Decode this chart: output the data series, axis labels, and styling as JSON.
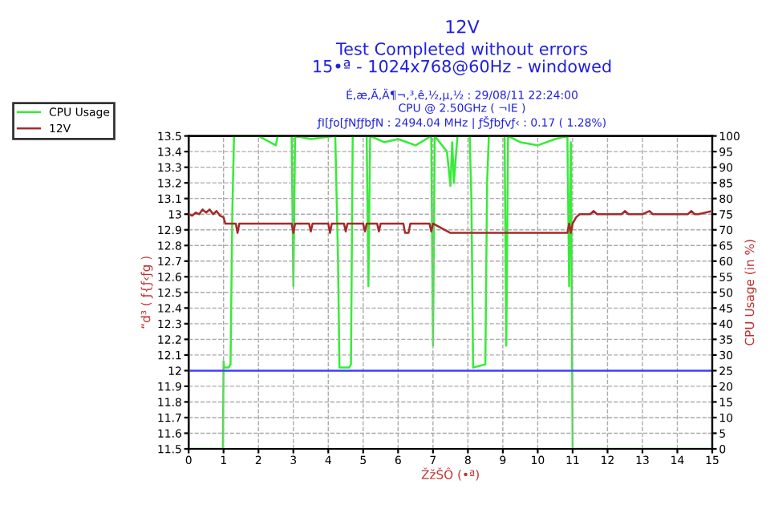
{
  "chart_data": {
    "type": "line",
    "title": "12V",
    "subtitle": "Test Completed without errors\n15•ª - 1024x768@60Hz - windowed",
    "annotations": [
      "É,æ,Ã,Ä¶¬,³,ê,½,µ,½ : 29/08/11 22:24:00",
      "CPU @ 2.50GHz ( ¬IE )",
      "ƒI[ƒo[ƒNƒƒbƒN : 2494.04 MHz | ƒŠƒbƒvƒ‹ : 0.17 ( 1.28%)"
    ],
    "xlabel": "ŽžŠÔ (•ª)",
    "ylabel": "“d³ ( ƒ{ƒ‹ƒg )",
    "y2label": "CPU Usage (in %)",
    "series": [
      {
        "name": "CPU Usage",
        "color": "#33ee33",
        "axis": "y2",
        "x": [
          0,
          0.98,
          1.0,
          1.02,
          1.05,
          1.15,
          1.2,
          1.25,
          1.3,
          2.0,
          2.5,
          2.55,
          2.95,
          3.0,
          3.05,
          3.5,
          4.2,
          4.28,
          4.32,
          4.6,
          4.65,
          4.7,
          5.1,
          5.15,
          5.2,
          5.6,
          6.0,
          6.5,
          6.95,
          7.0,
          7.05,
          7.4,
          7.5,
          7.55,
          7.6,
          7.7,
          8.05,
          8.1,
          8.15,
          8.5,
          8.55,
          8.6,
          9.05,
          9.1,
          9.15,
          9.5,
          10.0,
          10.5,
          10.85,
          10.9,
          10.95,
          11.0,
          11.02,
          15
        ],
        "values": [
          0,
          0,
          28,
          26,
          26,
          26,
          27,
          75,
          100,
          100,
          97,
          100,
          100,
          52,
          100,
          99,
          100,
          60,
          26,
          26,
          27,
          100,
          100,
          52,
          100,
          98,
          99,
          97,
          100,
          33,
          100,
          95,
          84,
          98,
          85,
          100,
          100,
          80,
          26,
          27,
          85,
          100,
          100,
          33,
          100,
          98,
          97,
          99,
          100,
          52,
          98,
          0,
          0,
          0
        ]
      },
      {
        "name": "12V",
        "color": "#a52a2a",
        "axis": "y",
        "x": [
          0,
          0.1,
          0.2,
          0.3,
          0.4,
          0.5,
          0.6,
          0.7,
          0.8,
          0.9,
          1.0,
          1.05,
          1.1,
          1.35,
          1.4,
          1.45,
          1.5,
          2.95,
          3.0,
          3.05,
          3.45,
          3.5,
          3.55,
          4.0,
          4.05,
          4.1,
          4.45,
          4.5,
          4.55,
          5.0,
          5.05,
          5.1,
          5.4,
          5.45,
          5.5,
          6.15,
          6.2,
          6.3,
          6.35,
          6.9,
          6.95,
          7.0,
          7.5,
          10.85,
          10.9,
          10.95,
          11.0,
          11.1,
          11.2,
          11.5,
          11.6,
          11.7,
          11.8,
          12.4,
          12.5,
          12.6,
          12.7,
          13.0,
          13.2,
          13.3,
          13.4,
          14.3,
          14.4,
          14.5,
          14.6,
          15
        ],
        "values": [
          13.0,
          12.99,
          13.01,
          13.0,
          13.03,
          13.01,
          13.03,
          13.0,
          13.02,
          12.99,
          12.98,
          12.94,
          12.94,
          12.94,
          12.88,
          12.94,
          12.94,
          12.94,
          12.88,
          12.94,
          12.94,
          12.89,
          12.94,
          12.94,
          12.88,
          12.94,
          12.94,
          12.89,
          12.94,
          12.94,
          12.89,
          12.94,
          12.94,
          12.89,
          12.94,
          12.94,
          12.88,
          12.88,
          12.94,
          12.94,
          12.89,
          12.94,
          12.88,
          12.88,
          12.94,
          12.88,
          12.94,
          12.98,
          13.0,
          13.0,
          13.02,
          13.0,
          13.0,
          13.0,
          13.02,
          13.0,
          13.0,
          13.0,
          13.02,
          13.0,
          13.0,
          13.0,
          13.02,
          13.0,
          13.0,
          13.02
        ]
      }
    ],
    "ref_lines": [
      {
        "axis": "y",
        "value": 12,
        "color": "#4040ff"
      }
    ],
    "xlim": [
      0,
      15
    ],
    "xticks": [
      0,
      1,
      2,
      3,
      4,
      5,
      6,
      7,
      8,
      9,
      10,
      11,
      12,
      13,
      14,
      15
    ],
    "ylim": [
      11.5,
      13.5
    ],
    "yticks": [
      11.5,
      11.6,
      11.7,
      11.8,
      11.9,
      12,
      12.1,
      12.2,
      12.3,
      12.4,
      12.5,
      12.6,
      12.7,
      12.8,
      12.9,
      13,
      13.1,
      13.2,
      13.3,
      13.4,
      13.5
    ],
    "y2lim": [
      0,
      100
    ],
    "y2ticks": [
      0,
      5,
      10,
      15,
      20,
      25,
      30,
      35,
      40,
      45,
      50,
      55,
      60,
      65,
      70,
      75,
      80,
      85,
      90,
      95,
      100
    ],
    "grid": true,
    "legend": "top left",
    "line_style": "solid",
    "marker": "none"
  }
}
